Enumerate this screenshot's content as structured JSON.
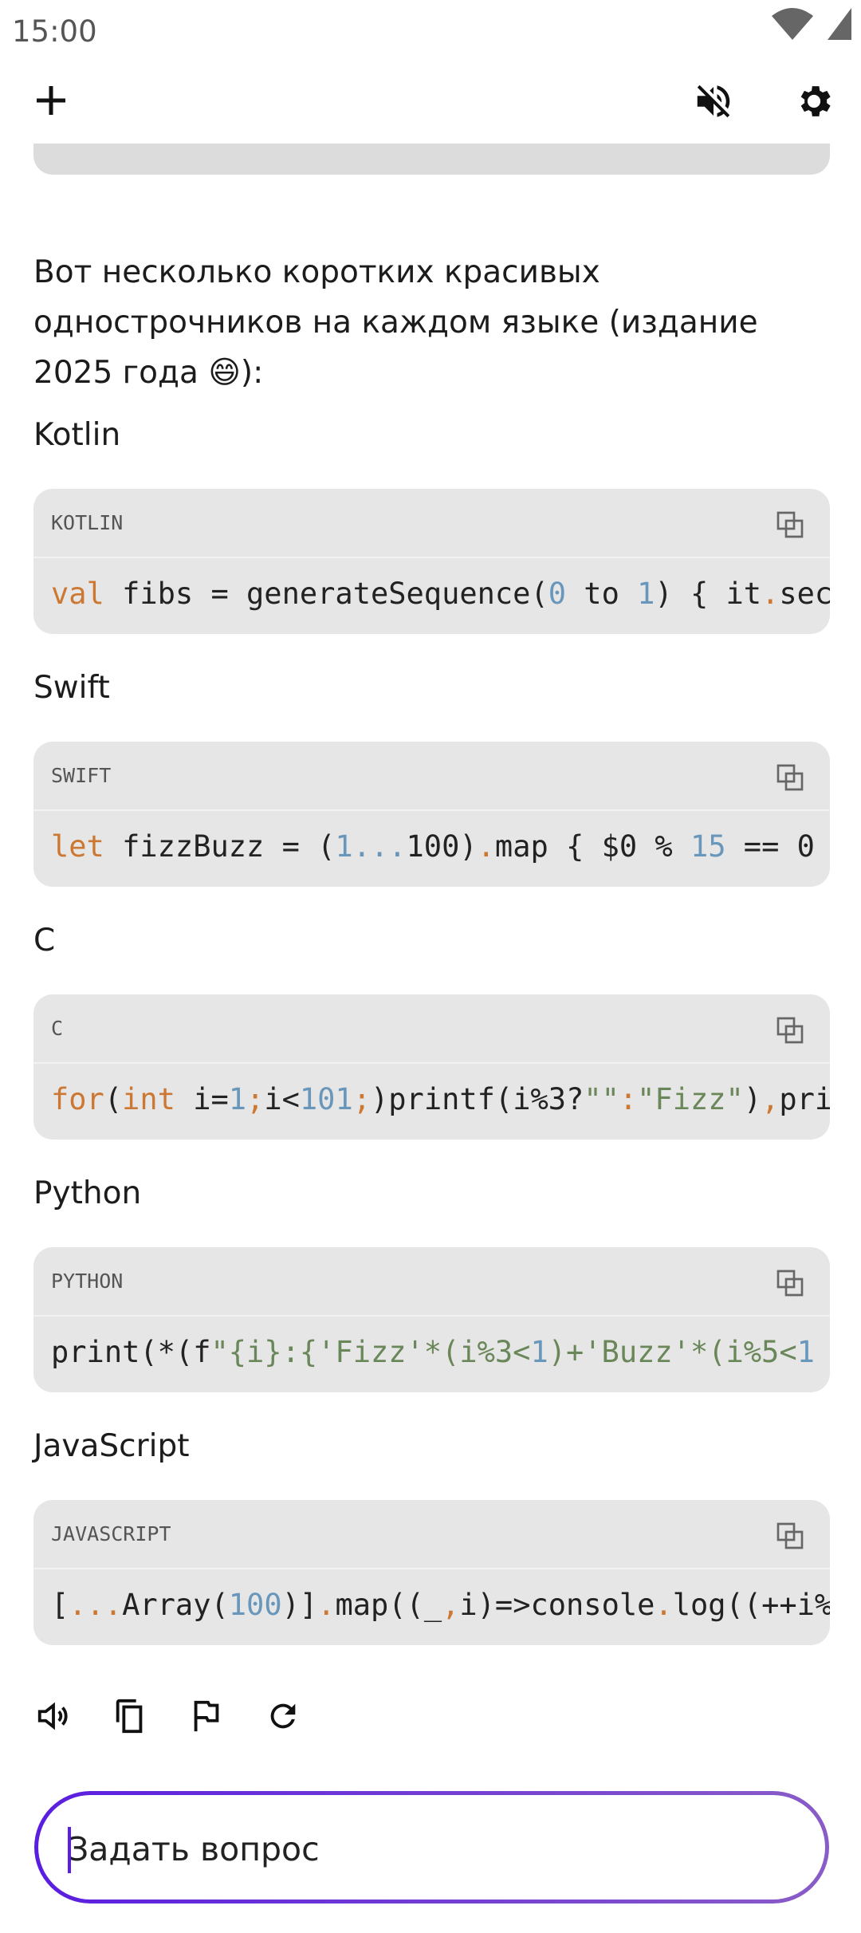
{
  "status_bar": {
    "time": "15:00"
  },
  "message": {
    "intro_lines": [
      "Вот несколько коротких красивых",
      "однострочников на каждом языке (издание",
      "2025 года 😄):"
    ],
    "sections": [
      {
        "title": "Kotlin",
        "language": "KOTLIN",
        "code": [
          {
            "text": "val",
            "color": "#cc7832"
          },
          {
            "text": " fibs = generateSequence(",
            "color": "#222222"
          },
          {
            "text": "0",
            "color": "#6897bb"
          },
          {
            "text": " to ",
            "color": "#222222"
          },
          {
            "text": "1",
            "color": "#6897bb"
          },
          {
            "text": ") { it",
            "color": "#222222"
          },
          {
            "text": ".",
            "color": "#cc7832"
          },
          {
            "text": "sec",
            "color": "#222222"
          }
        ]
      },
      {
        "title": "Swift",
        "language": "SWIFT",
        "code": [
          {
            "text": "let",
            "color": "#cc7832"
          },
          {
            "text": " fizzBuzz = (",
            "color": "#222222"
          },
          {
            "text": "1...",
            "color": "#6897bb"
          },
          {
            "text": "100)",
            "color": "#222222"
          },
          {
            "text": ".",
            "color": "#cc7832"
          },
          {
            "text": "map { $0 % ",
            "color": "#222222"
          },
          {
            "text": "15",
            "color": "#6897bb"
          },
          {
            "text": " == 0",
            "color": "#222222"
          }
        ]
      },
      {
        "title": "C",
        "language": "C",
        "code": [
          {
            "text": "for",
            "color": "#cc7832"
          },
          {
            "text": "(",
            "color": "#222222"
          },
          {
            "text": "int",
            "color": "#cc7832"
          },
          {
            "text": " i=",
            "color": "#222222"
          },
          {
            "text": "1",
            "color": "#6897bb"
          },
          {
            "text": ";",
            "color": "#cc7832"
          },
          {
            "text": "i<",
            "color": "#222222"
          },
          {
            "text": "101",
            "color": "#6897bb"
          },
          {
            "text": ";",
            "color": "#cc7832"
          },
          {
            "text": ")printf(i%3?",
            "color": "#222222"
          },
          {
            "text": "\"\"",
            "color": "#6a8759"
          },
          {
            "text": ":",
            "color": "#cc7832"
          },
          {
            "text": "\"Fizz\"",
            "color": "#6a8759"
          },
          {
            "text": ")",
            "color": "#222222"
          },
          {
            "text": ",",
            "color": "#cc7832"
          },
          {
            "text": "pri",
            "color": "#222222"
          }
        ]
      },
      {
        "title": "Python",
        "language": "PYTHON",
        "code": [
          {
            "text": "print(*(f",
            "color": "#222222"
          },
          {
            "text": "\"{i}:{'Fizz'*(i%3<",
            "color": "#6a8759"
          },
          {
            "text": "1",
            "color": "#6897bb"
          },
          {
            "text": ")+'Buzz'*(i%5<",
            "color": "#6a8759"
          },
          {
            "text": "1",
            "color": "#6897bb"
          }
        ]
      },
      {
        "title": "JavaScript",
        "language": "JAVASCRIPT",
        "code": [
          {
            "text": "[",
            "color": "#222222"
          },
          {
            "text": "...",
            "color": "#cc7832"
          },
          {
            "text": "Array(",
            "color": "#222222"
          },
          {
            "text": "100",
            "color": "#6897bb"
          },
          {
            "text": ")]",
            "color": "#222222"
          },
          {
            "text": ".",
            "color": "#cc7832"
          },
          {
            "text": "map((_",
            "color": "#222222"
          },
          {
            "text": ",",
            "color": "#cc7832"
          },
          {
            "text": "i)=>console",
            "color": "#222222"
          },
          {
            "text": ".",
            "color": "#cc7832"
          },
          {
            "text": "log((++i%",
            "color": "#222222"
          }
        ]
      }
    ]
  },
  "input": {
    "placeholder": "Задать вопрос"
  }
}
